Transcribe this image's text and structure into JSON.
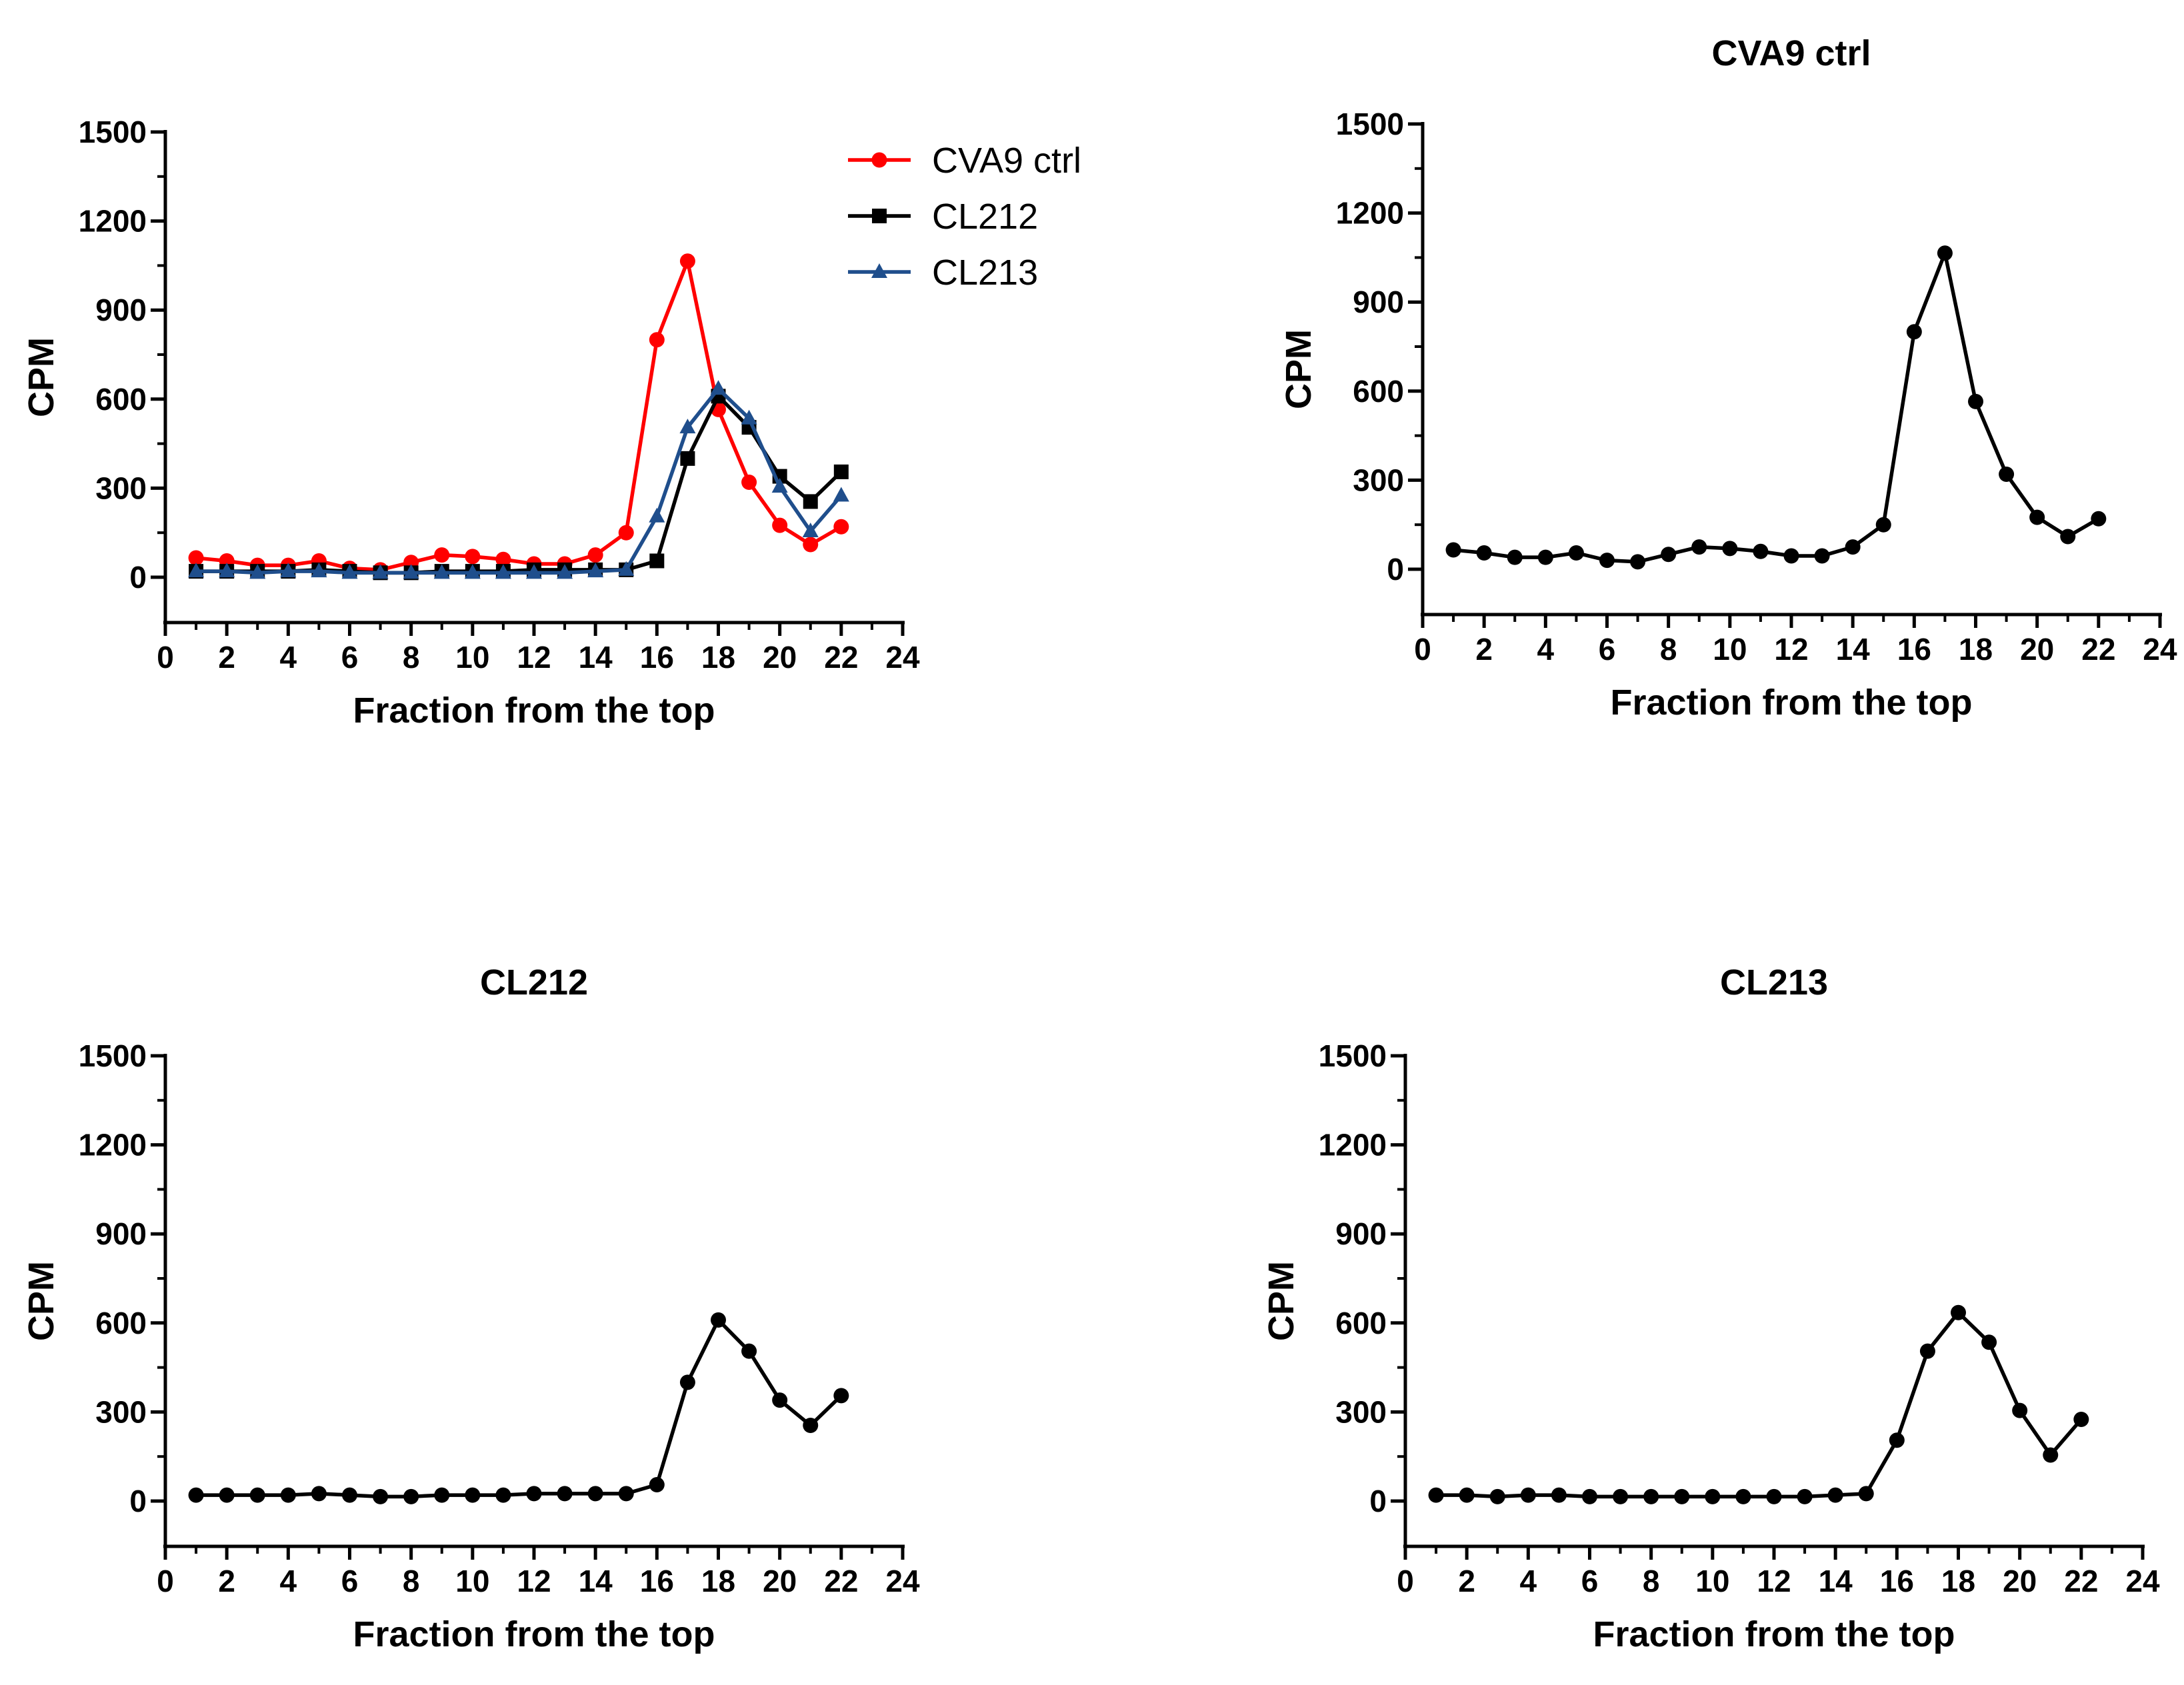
{
  "chart_data": [
    {
      "type": "line",
      "title": "",
      "xlabel": "Fraction from the top",
      "ylabel": "CPM",
      "xlim": [
        0,
        24
      ],
      "ylim": [
        -150,
        1500
      ],
      "xticks": [
        0,
        2,
        4,
        6,
        8,
        10,
        12,
        14,
        16,
        18,
        20,
        22,
        24
      ],
      "yticks": [
        0,
        300,
        600,
        900,
        1200,
        1500
      ],
      "legend": "top-right",
      "x": [
        1,
        2,
        3,
        4,
        5,
        6,
        7,
        8,
        9,
        10,
        11,
        12,
        13,
        14,
        15,
        16,
        17,
        18,
        19,
        20,
        21,
        22
      ],
      "series": [
        {
          "name": "CVA9 ctrl",
          "color": "#ff0000",
          "marker": "circle",
          "values": [
            65,
            55,
            40,
            40,
            55,
            30,
            25,
            50,
            75,
            70,
            60,
            45,
            45,
            75,
            150,
            800,
            1065,
            565,
            320,
            175,
            110,
            170
          ]
        },
        {
          "name": "CL212",
          "color": "#000000",
          "marker": "square",
          "values": [
            20,
            20,
            20,
            20,
            25,
            20,
            15,
            15,
            20,
            20,
            20,
            25,
            25,
            25,
            25,
            55,
            400,
            610,
            505,
            340,
            255,
            355
          ]
        },
        {
          "name": "CL213",
          "color": "#1f4e8c",
          "marker": "triangle",
          "values": [
            20,
            20,
            15,
            20,
            20,
            15,
            15,
            15,
            15,
            15,
            15,
            15,
            15,
            20,
            25,
            205,
            505,
            635,
            535,
            305,
            155,
            275
          ]
        }
      ]
    },
    {
      "type": "line",
      "title": "CVA9 ctrl",
      "xlabel": "Fraction from the top",
      "ylabel": "CPM",
      "xlim": [
        0,
        24
      ],
      "ylim": [
        -150,
        1500
      ],
      "xticks": [
        0,
        2,
        4,
        6,
        8,
        10,
        12,
        14,
        16,
        18,
        20,
        22,
        24
      ],
      "yticks": [
        0,
        300,
        600,
        900,
        1200,
        1500
      ],
      "x": [
        1,
        2,
        3,
        4,
        5,
        6,
        7,
        8,
        9,
        10,
        11,
        12,
        13,
        14,
        15,
        16,
        17,
        18,
        19,
        20,
        21,
        22
      ],
      "series": [
        {
          "name": "CVA9 ctrl",
          "color": "#000000",
          "marker": "circle",
          "values": [
            65,
            55,
            40,
            40,
            55,
            30,
            25,
            50,
            75,
            70,
            60,
            45,
            45,
            75,
            150,
            800,
            1065,
            565,
            320,
            175,
            110,
            170
          ]
        }
      ]
    },
    {
      "type": "line",
      "title": "CL212",
      "xlabel": "Fraction from the top",
      "ylabel": "CPM",
      "xlim": [
        0,
        24
      ],
      "ylim": [
        -150,
        1500
      ],
      "xticks": [
        0,
        2,
        4,
        6,
        8,
        10,
        12,
        14,
        16,
        18,
        20,
        22,
        24
      ],
      "yticks": [
        0,
        300,
        600,
        900,
        1200,
        1500
      ],
      "x": [
        1,
        2,
        3,
        4,
        5,
        6,
        7,
        8,
        9,
        10,
        11,
        12,
        13,
        14,
        15,
        16,
        17,
        18,
        19,
        20,
        21,
        22
      ],
      "series": [
        {
          "name": "CL212",
          "color": "#000000",
          "marker": "circle",
          "values": [
            20,
            20,
            20,
            20,
            25,
            20,
            15,
            15,
            20,
            20,
            20,
            25,
            25,
            25,
            25,
            55,
            400,
            610,
            505,
            340,
            255,
            355
          ]
        }
      ]
    },
    {
      "type": "line",
      "title": "CL213",
      "xlabel": "Fraction from the top",
      "ylabel": "CPM",
      "xlim": [
        0,
        24
      ],
      "ylim": [
        -150,
        1500
      ],
      "xticks": [
        0,
        2,
        4,
        6,
        8,
        10,
        12,
        14,
        16,
        18,
        20,
        22,
        24
      ],
      "yticks": [
        0,
        300,
        600,
        900,
        1200,
        1500
      ],
      "x": [
        1,
        2,
        3,
        4,
        5,
        6,
        7,
        8,
        9,
        10,
        11,
        12,
        13,
        14,
        15,
        16,
        17,
        18,
        19,
        20,
        21,
        22
      ],
      "series": [
        {
          "name": "CL213",
          "color": "#000000",
          "marker": "circle",
          "values": [
            20,
            20,
            15,
            20,
            20,
            15,
            15,
            15,
            15,
            15,
            15,
            15,
            15,
            20,
            25,
            205,
            505,
            635,
            535,
            305,
            155,
            275
          ]
        }
      ]
    }
  ]
}
